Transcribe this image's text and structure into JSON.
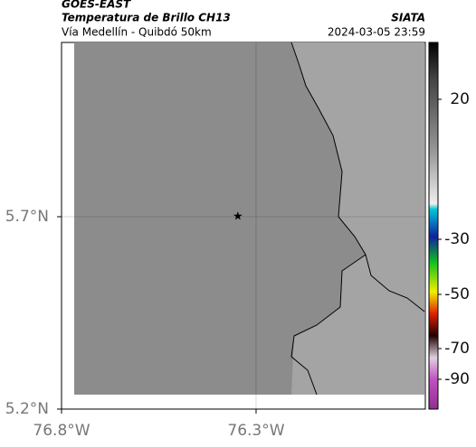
{
  "chart_data": {
    "type": "map",
    "title": "GOES-EAST",
    "subtitle": "Temperatura de Brillo CH13",
    "source": "SIATA",
    "route": "Vía Medellín - Quibdó 50km",
    "timestamp": "2024-03-05 23:59",
    "xlim": [
      -76.8,
      -75.865
    ],
    "ylim": [
      5.2,
      6.153
    ],
    "xticks": [
      {
        "value": -76.8,
        "label": "76.8°W"
      },
      {
        "value": -76.3,
        "label": "76.3°W"
      }
    ],
    "yticks": [
      {
        "value": 5.2,
        "label": "5.2°N"
      },
      {
        "value": 5.7,
        "label": "5.7°N"
      }
    ],
    "grid": true,
    "marker": {
      "lon": -76.347,
      "lat": 5.7
    },
    "colorbar_ticks": [
      20,
      -30,
      -50,
      -70,
      -90
    ]
  }
}
